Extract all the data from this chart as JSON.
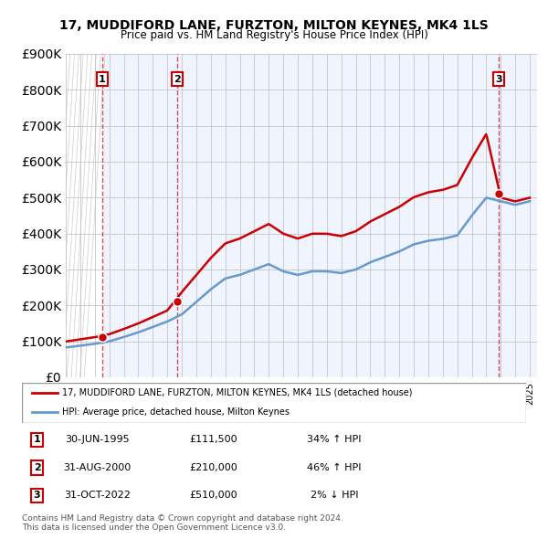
{
  "title": "17, MUDDIFORD LANE, FURZTON, MILTON KEYNES, MK4 1LS",
  "subtitle": "Price paid vs. HM Land Registry's House Price Index (HPI)",
  "sale_dates": [
    "1995-06-30",
    "2000-08-31",
    "2022-10-31"
  ],
  "sale_prices": [
    111500,
    210000,
    510000
  ],
  "sale_labels": [
    "1",
    "2",
    "3"
  ],
  "sale_hpi_text": [
    "34% ↑ HPI",
    "46% ↑ HPI",
    "2% ↓ HPI"
  ],
  "sale_date_text": [
    "30-JUN-1995",
    "31-AUG-2000",
    "31-OCT-2022"
  ],
  "sale_price_text": [
    "£111,500",
    "£210,000",
    "£510,000"
  ],
  "legend_line1": "17, MUDDIFORD LANE, FURZTON, MILTON KEYNES, MK4 1LS (detached house)",
  "legend_line2": "HPI: Average price, detached house, Milton Keynes",
  "footer1": "Contains HM Land Registry data © Crown copyright and database right 2024.",
  "footer2": "This data is licensed under the Open Government Licence v3.0.",
  "red_color": "#cc0000",
  "blue_color": "#6699cc",
  "hatch_color": "#cccccc",
  "bg_color": "#f0f4ff",
  "grid_color": "#bbbbbb",
  "ylim": [
    0,
    900000
  ],
  "xlim_start": 1993.0,
  "xlim_end": 2025.5
}
